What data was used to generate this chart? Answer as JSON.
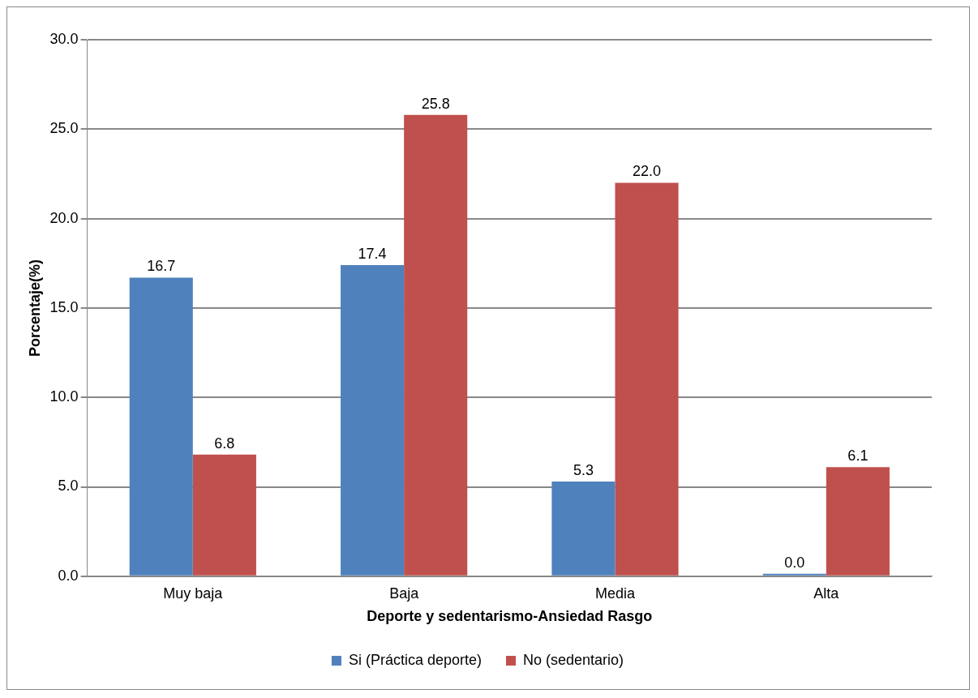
{
  "chart_data": {
    "type": "bar",
    "xlabel": "Deporte y sedentarismo-Ansiedad Rasgo",
    "ylabel": "Porcentaje(%)",
    "categories": [
      "Muy baja",
      "Baja",
      "Media",
      "Alta"
    ],
    "series": [
      {
        "name": "Si (Práctica deporte)",
        "color": "#4f81bd",
        "values": [
          16.7,
          17.4,
          5.3,
          0.0
        ],
        "value_labels": [
          "16.7",
          "17.4",
          "5.3",
          "0.0"
        ]
      },
      {
        "name": "No (sedentario)",
        "color": "#c0504d",
        "values": [
          6.8,
          25.8,
          22.0,
          6.1
        ],
        "value_labels": [
          "6.8",
          "25.8",
          "22.0",
          "6.1"
        ]
      }
    ],
    "ylim": [
      0,
      30
    ],
    "yticks": [
      {
        "value": 0,
        "label": "0.0"
      },
      {
        "value": 5,
        "label": "5.0"
      },
      {
        "value": 10,
        "label": "10.0"
      },
      {
        "value": 15,
        "label": "15.0"
      },
      {
        "value": 20,
        "label": "20.0"
      },
      {
        "value": 25,
        "label": "25.0"
      },
      {
        "value": 30,
        "label": "30.0"
      }
    ],
    "grid": "y",
    "legend": "bottom"
  }
}
